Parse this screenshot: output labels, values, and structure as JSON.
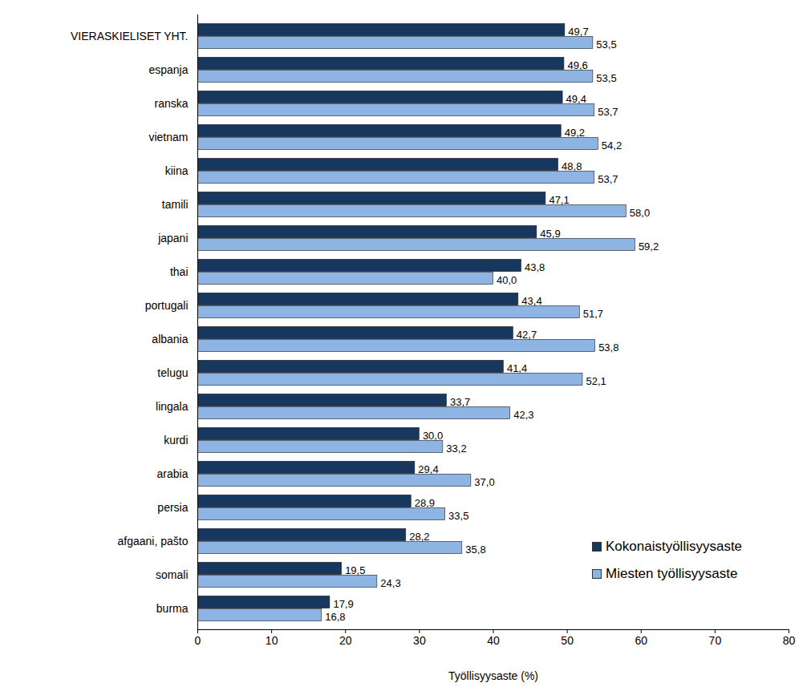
{
  "chart_data": {
    "type": "bar",
    "orientation": "horizontal",
    "categories": [
      "VIERASKIELISET YHT.",
      "espanja",
      "ranska",
      "vietnam",
      "kiina",
      "tamili",
      "japani",
      "thai",
      "portugali",
      "albania",
      "telugu",
      "lingala",
      "kurdi",
      "arabia",
      "persia",
      "afgaani, pašto",
      "somali",
      "burma"
    ],
    "series": [
      {
        "name": "Kokonaistyöllisyysaste",
        "color": "#17375E",
        "values": [
          49.7,
          49.6,
          49.4,
          49.2,
          48.8,
          47.1,
          45.9,
          43.8,
          43.4,
          42.7,
          41.4,
          33.7,
          30.0,
          29.4,
          28.9,
          28.2,
          19.5,
          17.9
        ],
        "value_labels": [
          "49,7",
          "49,6",
          "49,4",
          "49,2",
          "48,8",
          "47,1",
          "45,9",
          "43,8",
          "43,4",
          "42,7",
          "41,4",
          "33,7",
          "30,0",
          "29,4",
          "28,9",
          "28,2",
          "19,5",
          "17,9"
        ]
      },
      {
        "name": "Miesten työllisyysaste",
        "color": "#8EB4E3",
        "values": [
          53.5,
          53.5,
          53.7,
          54.2,
          53.7,
          58.0,
          59.2,
          40.0,
          51.7,
          53.8,
          52.1,
          42.3,
          33.2,
          37.0,
          33.5,
          35.8,
          24.3,
          16.8
        ],
        "value_labels": [
          "53,5",
          "53,5",
          "53,7",
          "54,2",
          "53,7",
          "58,0",
          "59,2",
          "40,0",
          "51,7",
          "53,8",
          "52,1",
          "42,3",
          "33,2",
          "37,0",
          "33,5",
          "35,8",
          "24,3",
          "16,8"
        ]
      }
    ],
    "x_label": "Työllisyysaste (%)",
    "xlim": [
      0,
      80
    ],
    "xticks": [
      0,
      10,
      20,
      30,
      40,
      50,
      60,
      70,
      80
    ],
    "data_labels": true,
    "legend": "lower right",
    "grid": false
  }
}
